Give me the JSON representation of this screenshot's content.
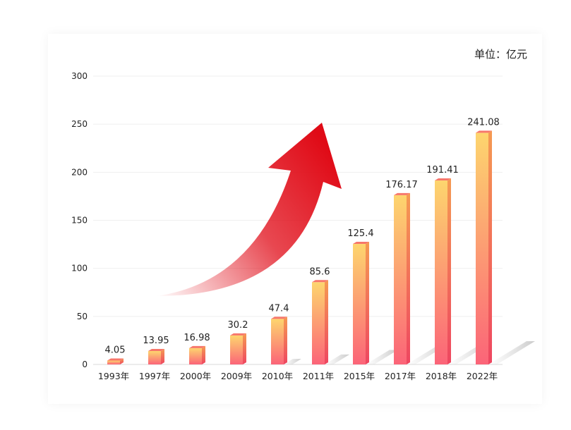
{
  "unit_label": "单位：亿元",
  "colors": {
    "bar_top": "#fdd56e",
    "bar_bottom": "#fb6478",
    "arrow": "#e00a16"
  },
  "chart_data": {
    "type": "bar",
    "categories": [
      "1993年",
      "1997年",
      "2000年",
      "2009年",
      "2010年",
      "2011年",
      "2015年",
      "2017年",
      "2018年",
      "2022年"
    ],
    "values": [
      4.05,
      13.95,
      16.98,
      30.2,
      47.4,
      85.6,
      125.4,
      176.17,
      191.41,
      241.08
    ],
    "value_labels": [
      "4.05",
      "13.95",
      "16.98",
      "30.2",
      "47.4",
      "85.6",
      "125.4",
      "176.17",
      "191.41",
      "241.08"
    ],
    "ylim": [
      0,
      300
    ],
    "yticks": [
      0,
      50,
      100,
      150,
      200,
      250,
      300
    ],
    "grid": true,
    "legend": "none"
  }
}
